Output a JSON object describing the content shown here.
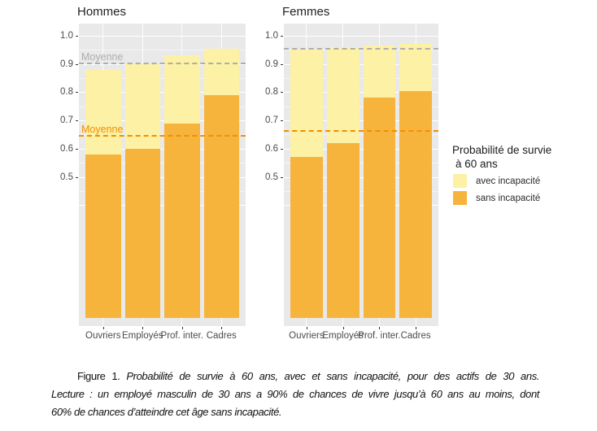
{
  "chart_data": [
    {
      "type": "bar",
      "stacked": true,
      "title": "Hommes",
      "categories": [
        "Ouvriers",
        "Employés",
        "Prof. inter.",
        "Cadres"
      ],
      "series": [
        {
          "name": "sans incapacité",
          "color": "#F6B43D",
          "values": [
            0.58,
            0.6,
            0.69,
            0.79
          ]
        },
        {
          "name": "avec incapacité",
          "color": "#FCF1A5",
          "values": [
            0.3,
            0.3,
            0.24,
            0.165
          ]
        }
      ],
      "bar_totals": [
        0.88,
        0.9,
        0.93,
        0.955
      ],
      "mean_lines": [
        {
          "label": "Moyenne",
          "value": 0.902,
          "color": "#ADADAD",
          "label_visible": true
        },
        {
          "label": "Moyenne",
          "value": 0.645,
          "color": "#F28E00",
          "label_visible": true
        }
      ],
      "y_tick_labels": [
        "1.0",
        "0.9",
        "0.8",
        "0.7",
        "0.6",
        "0.5"
      ],
      "ylim": [
        0.4,
        1.04
      ],
      "grid": "major 0.4-1.0 step 0.1, minor 0.45-0.95, white on grey panel"
    },
    {
      "type": "bar",
      "stacked": true,
      "title": "Femmes",
      "categories": [
        "Ouvriers",
        "Employés",
        "Prof. inter.",
        "Cadres"
      ],
      "series": [
        {
          "name": "sans incapacité",
          "color": "#F6B43D",
          "values": [
            0.57,
            0.62,
            0.78,
            0.805
          ]
        },
        {
          "name": "avec incapacité",
          "color": "#FCF1A5",
          "values": [
            0.38,
            0.34,
            0.185,
            0.165
          ]
        }
      ],
      "bar_totals": [
        0.95,
        0.96,
        0.965,
        0.97
      ],
      "mean_lines": [
        {
          "label": "Moyenne",
          "value": 0.953,
          "color": "#ADADAD",
          "label_visible": false
        },
        {
          "label": "Moyenne",
          "value": 0.663,
          "color": "#F28E00",
          "label_visible": false
        }
      ],
      "y_tick_labels": [
        "1.0",
        "0.9",
        "0.8",
        "0.7",
        "0.6",
        "0.5"
      ],
      "ylim": [
        0.4,
        1.04
      ],
      "grid": "major 0.4-1.0 step 0.1, minor 0.45-0.95, white on grey panel"
    }
  ],
  "legend": {
    "title_line1": "Probabilité de survie",
    "title_line2": "à 60 ans",
    "items": [
      {
        "label": "avec incapacité",
        "color": "#FCF1A5"
      },
      {
        "label": "sans incapacité",
        "color": "#F6B43D"
      }
    ]
  },
  "caption": {
    "prefix": "Figure 1.",
    "line1": "Probabilité de survie à 60 ans, avec et sans incapacité, pour des actifs de 30 ans.",
    "line2": "Lecture : un employé masculin de 30 ans a 90% de chances de vivre jusqu’à 60 ans au moins, dont",
    "line3": "60% de chances d’atteindre cet âge sans incapacité."
  },
  "colors": {
    "panel_background": "#E9E9E9",
    "avec_incapacite": "#FCF1A5",
    "sans_incapacite": "#F6B43D",
    "mean_line_avec": "#ADADAD",
    "mean_line_sans": "#F28E00",
    "axis_text": "#4A4A4A"
  }
}
